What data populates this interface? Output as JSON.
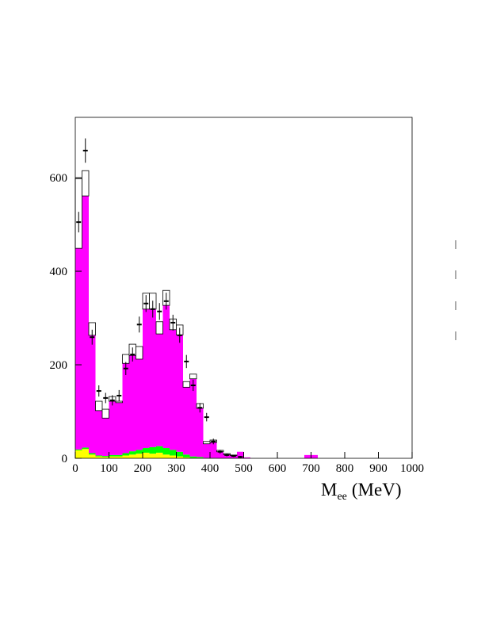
{
  "chart_data": {
    "type": "histogram",
    "bins": [
      0,
      20,
      40,
      60,
      80,
      100,
      120,
      140,
      160,
      180,
      200,
      220,
      240,
      260,
      280,
      300,
      320,
      340,
      360,
      380,
      400,
      420,
      440,
      460,
      480,
      500,
      520,
      540,
      560,
      580,
      600,
      620,
      640,
      660,
      680,
      700,
      720,
      740,
      760,
      780,
      800,
      820,
      840,
      860,
      880,
      900,
      920,
      940,
      960,
      980,
      1000
    ],
    "series": [
      {
        "color": "#ffff00",
        "values": [
          17,
          20,
          8,
          4,
          3,
          4,
          4,
          6,
          8,
          10,
          12,
          10,
          12,
          8,
          6,
          4,
          2,
          1,
          1,
          0,
          0,
          0,
          0,
          0,
          0,
          0,
          0,
          0,
          0,
          0,
          0,
          0,
          0,
          0,
          0,
          0,
          0,
          0,
          0,
          0,
          0,
          0,
          0,
          0,
          0,
          0,
          0,
          0,
          0,
          0
        ]
      },
      {
        "color": "#00ff00",
        "values": [
          2,
          3,
          3,
          2,
          2,
          3,
          3,
          5,
          7,
          8,
          10,
          14,
          14,
          14,
          12,
          10,
          6,
          3,
          2,
          1,
          1,
          0,
          0,
          0,
          0,
          0,
          0,
          0,
          0,
          0,
          0,
          0,
          0,
          0,
          0,
          0,
          0,
          0,
          0,
          0,
          0,
          0,
          0,
          0,
          0,
          0,
          0,
          0,
          0,
          0
        ]
      },
      {
        "color": "#ff00ff",
        "values": [
          430,
          538,
          252,
          96,
          81,
          115,
          112,
          192,
          205,
          194,
          297,
          295,
          240,
          305,
          257,
          250,
          144,
          166,
          104,
          30,
          33,
          14,
          8,
          6,
          14,
          2,
          0,
          0,
          0,
          0,
          0,
          0,
          0,
          0,
          7,
          7,
          0,
          0,
          0,
          0,
          0,
          0,
          0,
          0,
          0,
          0,
          0,
          0,
          0,
          0
        ]
      },
      {
        "color": "#ffffff",
        "values": [
          149,
          54,
          27,
          20,
          19,
          10,
          3,
          19,
          24,
          27,
          34,
          34,
          26,
          32,
          23,
          21,
          12,
          10,
          10,
          5,
          5,
          3,
          2,
          1,
          0,
          0,
          0,
          0,
          0,
          0,
          0,
          0,
          0,
          0,
          0,
          0,
          0,
          0,
          0,
          0,
          0,
          0,
          0,
          0,
          0,
          0,
          0,
          0,
          0,
          0
        ]
      }
    ],
    "points": {
      "color": "#000000",
      "x": [
        10,
        30,
        50,
        70,
        90,
        110,
        130,
        150,
        170,
        190,
        210,
        230,
        250,
        270,
        290,
        310,
        330,
        350,
        370,
        390,
        410,
        430,
        450,
        470,
        490
      ],
      "values": [
        505,
        658,
        259,
        144,
        129,
        124,
        134,
        192,
        222,
        286,
        331,
        319,
        314,
        336,
        290,
        263,
        207,
        156,
        108,
        88,
        36,
        14,
        7,
        5,
        3
      ],
      "errors": [
        22,
        26,
        16,
        12,
        11,
        11,
        12,
        14,
        15,
        17,
        18,
        18,
        18,
        18,
        17,
        16,
        14,
        12,
        10,
        9,
        6,
        4,
        3,
        2,
        2
      ]
    },
    "xlim": [
      0,
      1000
    ],
    "ylim": [
      0,
      729
    ],
    "xticks": [
      0,
      100,
      200,
      300,
      400,
      500,
      600,
      700,
      800,
      900,
      1000
    ],
    "yticks": [
      0,
      200,
      400,
      600
    ],
    "xlabel": {
      "main": "M",
      "sub": "ee",
      "unit": "(MeV)"
    }
  }
}
